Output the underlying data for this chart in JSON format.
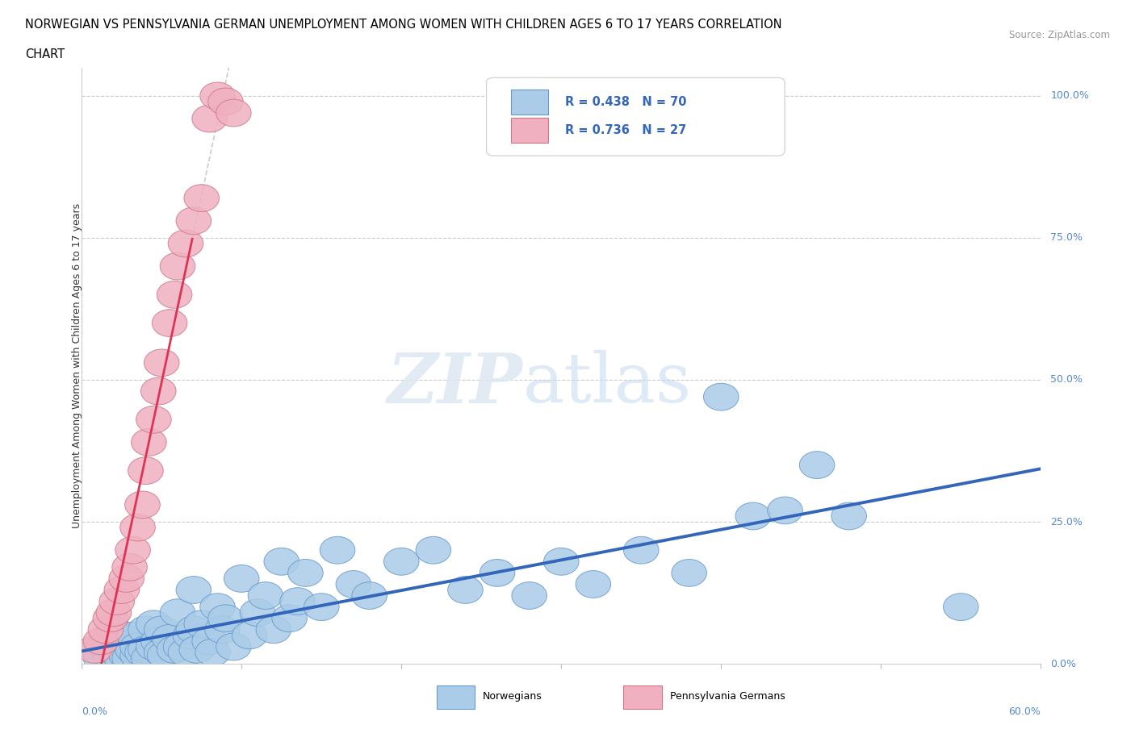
{
  "title_line1": "NORWEGIAN VS PENNSYLVANIA GERMAN UNEMPLOYMENT AMONG WOMEN WITH CHILDREN AGES 6 TO 17 YEARS CORRELATION",
  "title_line2": "CHART",
  "source": "Source: ZipAtlas.com",
  "xlabel_bottom_left": "0.0%",
  "xlabel_bottom_right": "60.0%",
  "ylabel": "Unemployment Among Women with Children Ages 6 to 17 years",
  "yticks": [
    "0.0%",
    "25.0%",
    "50.0%",
    "75.0%",
    "100.0%"
  ],
  "ytick_vals": [
    0.0,
    0.25,
    0.5,
    0.75,
    1.0
  ],
  "xlim": [
    0.0,
    0.6
  ],
  "ylim": [
    0.0,
    1.05
  ],
  "norwegian_color": "#aacce8",
  "norwegian_edge_color": "#6699cc",
  "norwegian_line_color": "#3366bb",
  "penn_color": "#f0b0c0",
  "penn_edge_color": "#cc7788",
  "penn_line_color": "#dd3355",
  "R_norwegian": 0.438,
  "N_norwegian": 70,
  "R_penn": 0.736,
  "N_penn": 27,
  "norwegian_points": [
    [
      0.01,
      0.025
    ],
    [
      0.012,
      0.01
    ],
    [
      0.015,
      0.04
    ],
    [
      0.018,
      0.015
    ],
    [
      0.02,
      0.06
    ],
    [
      0.022,
      0.02
    ],
    [
      0.024,
      0.03
    ],
    [
      0.025,
      0.01
    ],
    [
      0.027,
      0.045
    ],
    [
      0.028,
      0.015
    ],
    [
      0.03,
      0.035
    ],
    [
      0.03,
      0.01
    ],
    [
      0.032,
      0.025
    ],
    [
      0.033,
      0.05
    ],
    [
      0.035,
      0.015
    ],
    [
      0.035,
      0.03
    ],
    [
      0.038,
      0.02
    ],
    [
      0.04,
      0.06
    ],
    [
      0.04,
      0.025
    ],
    [
      0.042,
      0.01
    ],
    [
      0.045,
      0.07
    ],
    [
      0.045,
      0.03
    ],
    [
      0.048,
      0.04
    ],
    [
      0.05,
      0.02
    ],
    [
      0.05,
      0.06
    ],
    [
      0.052,
      0.015
    ],
    [
      0.055,
      0.045
    ],
    [
      0.058,
      0.025
    ],
    [
      0.06,
      0.09
    ],
    [
      0.062,
      0.03
    ],
    [
      0.065,
      0.02
    ],
    [
      0.068,
      0.05
    ],
    [
      0.07,
      0.13
    ],
    [
      0.07,
      0.06
    ],
    [
      0.072,
      0.025
    ],
    [
      0.075,
      0.07
    ],
    [
      0.08,
      0.04
    ],
    [
      0.082,
      0.02
    ],
    [
      0.085,
      0.1
    ],
    [
      0.088,
      0.06
    ],
    [
      0.09,
      0.08
    ],
    [
      0.095,
      0.03
    ],
    [
      0.1,
      0.15
    ],
    [
      0.105,
      0.05
    ],
    [
      0.11,
      0.09
    ],
    [
      0.115,
      0.12
    ],
    [
      0.12,
      0.06
    ],
    [
      0.125,
      0.18
    ],
    [
      0.13,
      0.08
    ],
    [
      0.135,
      0.11
    ],
    [
      0.14,
      0.16
    ],
    [
      0.15,
      0.1
    ],
    [
      0.16,
      0.2
    ],
    [
      0.17,
      0.14
    ],
    [
      0.18,
      0.12
    ],
    [
      0.2,
      0.18
    ],
    [
      0.22,
      0.2
    ],
    [
      0.24,
      0.13
    ],
    [
      0.26,
      0.16
    ],
    [
      0.28,
      0.12
    ],
    [
      0.3,
      0.18
    ],
    [
      0.32,
      0.14
    ],
    [
      0.35,
      0.2
    ],
    [
      0.38,
      0.16
    ],
    [
      0.4,
      0.47
    ],
    [
      0.42,
      0.26
    ],
    [
      0.44,
      0.27
    ],
    [
      0.46,
      0.35
    ],
    [
      0.48,
      0.26
    ],
    [
      0.55,
      0.1
    ]
  ],
  "penn_points": [
    [
      0.008,
      0.025
    ],
    [
      0.012,
      0.04
    ],
    [
      0.015,
      0.06
    ],
    [
      0.018,
      0.08
    ],
    [
      0.02,
      0.09
    ],
    [
      0.022,
      0.11
    ],
    [
      0.025,
      0.13
    ],
    [
      0.028,
      0.15
    ],
    [
      0.03,
      0.17
    ],
    [
      0.032,
      0.2
    ],
    [
      0.035,
      0.24
    ],
    [
      0.038,
      0.28
    ],
    [
      0.04,
      0.34
    ],
    [
      0.042,
      0.39
    ],
    [
      0.045,
      0.43
    ],
    [
      0.048,
      0.48
    ],
    [
      0.05,
      0.53
    ],
    [
      0.055,
      0.6
    ],
    [
      0.058,
      0.65
    ],
    [
      0.06,
      0.7
    ],
    [
      0.065,
      0.74
    ],
    [
      0.07,
      0.78
    ],
    [
      0.075,
      0.82
    ],
    [
      0.08,
      0.96
    ],
    [
      0.085,
      1.0
    ],
    [
      0.09,
      0.99
    ],
    [
      0.095,
      0.97
    ]
  ]
}
